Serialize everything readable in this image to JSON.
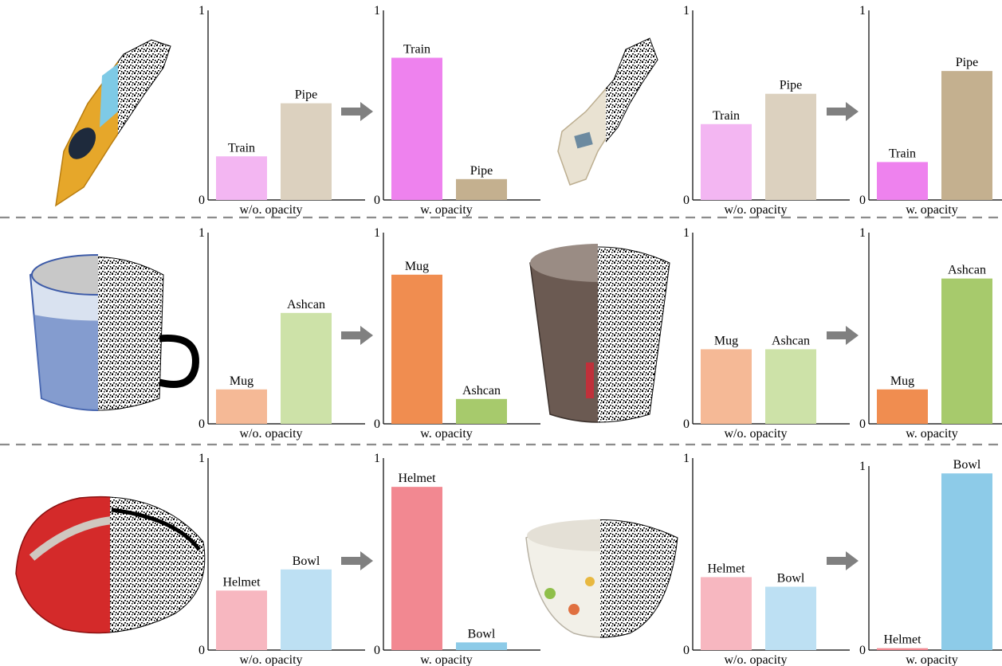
{
  "colors": {
    "train_light": "#f3b6f2",
    "train_dark": "#ee82ee",
    "pipe_light": "#dcd1bf",
    "pipe_dark": "#c4b08f",
    "mug_light": "#f5b996",
    "mug_dark": "#f08d50",
    "ashcan_light": "#cde2a8",
    "ashcan_dark": "#a7ca6c",
    "helmet_light": "#f7b7c0",
    "helmet_dark": "#f28891",
    "bowl_light": "#bde0f3",
    "bowl_dark": "#8dcbe8",
    "arrow": "#808080",
    "divider": "#8c8c8c",
    "axis": "#000000"
  },
  "rows": [
    {
      "name": "train-pipe",
      "groups": [
        {
          "object": "train-icon",
          "charts": [
            {
              "type": "bar",
              "xlabel": "w/o. opacity",
              "ylim": [
                0,
                1
              ],
              "yticks": [
                "0",
                "1"
              ],
              "categories": [
                "Train",
                "Pipe"
              ],
              "values": [
                0.23,
                0.51
              ],
              "color_keys": [
                "train_light",
                "pipe_light"
              ]
            },
            {
              "type": "bar",
              "xlabel": "w. opacity",
              "ylim": [
                0,
                1
              ],
              "yticks": [
                "0",
                "1"
              ],
              "categories": [
                "Train",
                "Pipe"
              ],
              "values": [
                0.75,
                0.11
              ],
              "color_keys": [
                "train_dark",
                "pipe_dark"
              ]
            }
          ]
        },
        {
          "object": "pipe-icon",
          "charts": [
            {
              "type": "bar",
              "xlabel": "w/o. opacity",
              "ylim": [
                0,
                1
              ],
              "yticks": [
                "0",
                "1"
              ],
              "categories": [
                "Train",
                "Pipe"
              ],
              "values": [
                0.4,
                0.56
              ],
              "color_keys": [
                "train_light",
                "pipe_light"
              ]
            },
            {
              "type": "bar",
              "xlabel": "w. opacity",
              "ylim": [
                0,
                1
              ],
              "yticks": [
                "0",
                "1"
              ],
              "categories": [
                "Train",
                "Pipe"
              ],
              "values": [
                0.2,
                0.68
              ],
              "color_keys": [
                "train_dark",
                "pipe_dark"
              ]
            }
          ]
        }
      ]
    },
    {
      "name": "mug-ashcan",
      "groups": [
        {
          "object": "mug-icon",
          "charts": [
            {
              "type": "bar",
              "xlabel": "w/o. opacity",
              "ylim": [
                0,
                1
              ],
              "yticks": [
                "0",
                "1"
              ],
              "categories": [
                "Mug",
                "Ashcan"
              ],
              "values": [
                0.18,
                0.58
              ],
              "color_keys": [
                "mug_light",
                "ashcan_light"
              ]
            },
            {
              "type": "bar",
              "xlabel": "w. opacity",
              "ylim": [
                0,
                1
              ],
              "yticks": [
                "0",
                "1"
              ],
              "categories": [
                "Mug",
                "Ashcan"
              ],
              "values": [
                0.78,
                0.13
              ],
              "color_keys": [
                "mug_dark",
                "ashcan_dark"
              ]
            }
          ]
        },
        {
          "object": "ashcan-icon",
          "charts": [
            {
              "type": "bar",
              "xlabel": "w/o. opacity",
              "ylim": [
                0,
                1
              ],
              "yticks": [
                "0",
                "1"
              ],
              "categories": [
                "Mug",
                "Ashcan"
              ],
              "values": [
                0.39,
                0.39
              ],
              "color_keys": [
                "mug_light",
                "ashcan_light"
              ]
            },
            {
              "type": "bar",
              "xlabel": "w. opacity",
              "ylim": [
                0,
                1
              ],
              "yticks": [
                "0",
                "1"
              ],
              "categories": [
                "Mug",
                "Ashcan"
              ],
              "values": [
                0.18,
                0.76
              ],
              "color_keys": [
                "mug_dark",
                "ashcan_dark"
              ]
            }
          ]
        }
      ]
    },
    {
      "name": "helmet-bowl",
      "groups": [
        {
          "object": "helmet-icon",
          "charts": [
            {
              "type": "bar",
              "xlabel": "w/o. opacity",
              "ylim": [
                0,
                1
              ],
              "yticks": [
                "0",
                "1"
              ],
              "categories": [
                "Helmet",
                "Bowl"
              ],
              "values": [
                0.31,
                0.42
              ],
              "color_keys": [
                "helmet_light",
                "bowl_light"
              ]
            },
            {
              "type": "bar",
              "xlabel": "w. opacity",
              "ylim": [
                0,
                1
              ],
              "yticks": [
                "0",
                "1"
              ],
              "categories": [
                "Helmet",
                "Bowl"
              ],
              "values": [
                0.85,
                0.04
              ],
              "color_keys": [
                "helmet_dark",
                "bowl_dark"
              ]
            }
          ]
        },
        {
          "object": "bowl-icon",
          "charts": [
            {
              "type": "bar",
              "xlabel": "w/o. opacity",
              "ylim": [
                0,
                1
              ],
              "yticks": [
                "0",
                "1"
              ],
              "categories": [
                "Helmet",
                "Bowl"
              ],
              "values": [
                0.38,
                0.33
              ],
              "color_keys": [
                "helmet_light",
                "bowl_light"
              ]
            },
            {
              "type": "bar",
              "xlabel": "w. opacity",
              "ylim": [
                0,
                1
              ],
              "yticks": [
                "0",
                "1"
              ],
              "categories": [
                "Helmet",
                "Bowl"
              ],
              "values": [
                0.01,
                0.96
              ],
              "color_keys": [
                "helmet_dark",
                "bowl_dark"
              ]
            }
          ]
        }
      ]
    }
  ],
  "chart_data": [
    {
      "type": "bar",
      "xlabel": "w/o. opacity",
      "categories": [
        "Train",
        "Pipe"
      ],
      "values": [
        0.23,
        0.51
      ],
      "ylim": [
        0,
        1
      ]
    },
    {
      "type": "bar",
      "xlabel": "w. opacity",
      "categories": [
        "Train",
        "Pipe"
      ],
      "values": [
        0.75,
        0.11
      ],
      "ylim": [
        0,
        1
      ]
    },
    {
      "type": "bar",
      "xlabel": "w/o. opacity",
      "categories": [
        "Train",
        "Pipe"
      ],
      "values": [
        0.4,
        0.56
      ],
      "ylim": [
        0,
        1
      ]
    },
    {
      "type": "bar",
      "xlabel": "w. opacity",
      "categories": [
        "Train",
        "Pipe"
      ],
      "values": [
        0.2,
        0.68
      ],
      "ylim": [
        0,
        1
      ]
    },
    {
      "type": "bar",
      "xlabel": "w/o. opacity",
      "categories": [
        "Mug",
        "Ashcan"
      ],
      "values": [
        0.18,
        0.58
      ],
      "ylim": [
        0,
        1
      ]
    },
    {
      "type": "bar",
      "xlabel": "w. opacity",
      "categories": [
        "Mug",
        "Ashcan"
      ],
      "values": [
        0.78,
        0.13
      ],
      "ylim": [
        0,
        1
      ]
    },
    {
      "type": "bar",
      "xlabel": "w/o. opacity",
      "categories": [
        "Mug",
        "Ashcan"
      ],
      "values": [
        0.39,
        0.39
      ],
      "ylim": [
        0,
        1
      ]
    },
    {
      "type": "bar",
      "xlabel": "w. opacity",
      "categories": [
        "Mug",
        "Ashcan"
      ],
      "values": [
        0.18,
        0.76
      ],
      "ylim": [
        0,
        1
      ]
    },
    {
      "type": "bar",
      "xlabel": "w/o. opacity",
      "categories": [
        "Helmet",
        "Bowl"
      ],
      "values": [
        0.31,
        0.42
      ],
      "ylim": [
        0,
        1
      ]
    },
    {
      "type": "bar",
      "xlabel": "w. opacity",
      "categories": [
        "Helmet",
        "Bowl"
      ],
      "values": [
        0.85,
        0.04
      ],
      "ylim": [
        0,
        1
      ]
    },
    {
      "type": "bar",
      "xlabel": "w/o. opacity",
      "categories": [
        "Helmet",
        "Bowl"
      ],
      "values": [
        0.38,
        0.33
      ],
      "ylim": [
        0,
        1
      ]
    },
    {
      "type": "bar",
      "xlabel": "w. opacity",
      "categories": [
        "Helmet",
        "Bowl"
      ],
      "values": [
        0.01,
        0.96
      ],
      "ylim": [
        0,
        1
      ]
    }
  ]
}
